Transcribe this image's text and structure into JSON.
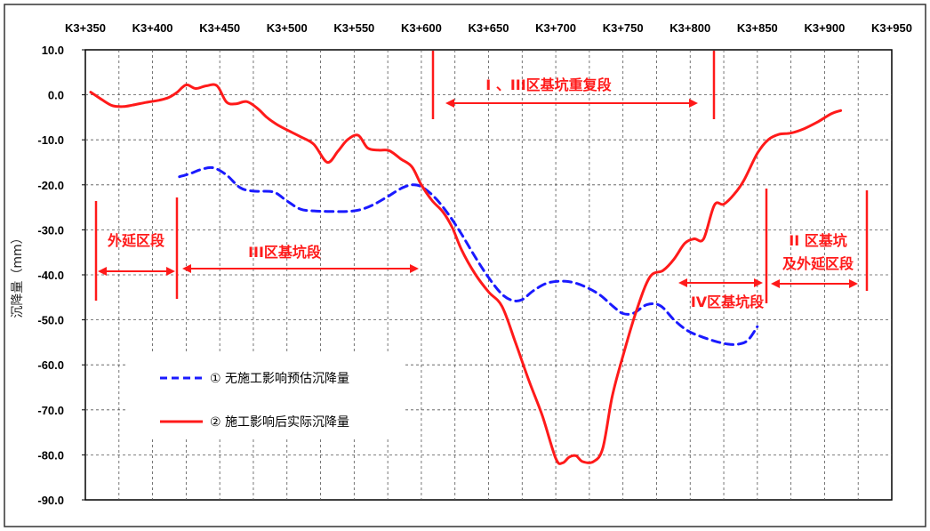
{
  "chart_data": {
    "type": "line",
    "xlabel": "",
    "ylabel": "沉降量（mm）",
    "x_tick_labels": [
      "K3+350",
      "K3+400",
      "K3+450",
      "K3+500",
      "K3+550",
      "K3+600",
      "K3+650",
      "K3+700",
      "K3+750",
      "K3+800",
      "K3+850",
      "K3+900",
      "K3+950"
    ],
    "xlim": [
      3350,
      3950
    ],
    "ylim": [
      -90,
      10
    ],
    "y_tick_labels": [
      "10.0",
      "0.0",
      "-10.0",
      "-20.0",
      "-30.0",
      "-40.0",
      "-50.0",
      "-60.0",
      "-70.0",
      "-80.0",
      "-90.0"
    ],
    "grid": true,
    "series": [
      {
        "name": "① 无施工影响预估沉降量",
        "color": "#1a1aff",
        "style": "dashed",
        "x": [
          3420,
          3428,
          3436,
          3445,
          3455,
          3465,
          3475,
          3490,
          3500,
          3510,
          3520,
          3530,
          3545,
          3555,
          3565,
          3575,
          3585,
          3593,
          3600,
          3610,
          3620,
          3630,
          3640,
          3650,
          3660,
          3668,
          3675,
          3683,
          3693,
          3703,
          3713,
          3723,
          3733,
          3743,
          3750,
          3758,
          3768,
          3778,
          3788,
          3798,
          3808,
          3818,
          3828,
          3836,
          3843,
          3850
        ],
        "values": [
          -18.2,
          -17.5,
          -16.6,
          -16.2,
          -17.8,
          -20.6,
          -21.4,
          -21.6,
          -23.6,
          -25.4,
          -25.8,
          -25.9,
          -25.9,
          -25.5,
          -24.3,
          -22.6,
          -20.8,
          -20.0,
          -20.4,
          -22.8,
          -26.5,
          -31.0,
          -36.0,
          -40.6,
          -44.3,
          -45.7,
          -45.5,
          -43.6,
          -41.9,
          -41.4,
          -41.7,
          -42.8,
          -44.5,
          -47.1,
          -48.6,
          -48.5,
          -46.6,
          -46.9,
          -50.0,
          -52.4,
          -53.7,
          -54.7,
          -55.4,
          -55.4,
          -54.5,
          -51.5
        ]
      },
      {
        "name": "② 施工影响后实际沉降量",
        "color": "#ff1a1a",
        "style": "solid",
        "x": [
          3354,
          3362,
          3370,
          3378,
          3385,
          3395,
          3405,
          3412,
          3418,
          3425,
          3432,
          3440,
          3448,
          3455,
          3462,
          3470,
          3478,
          3485,
          3492,
          3500,
          3510,
          3520,
          3530,
          3538,
          3545,
          3553,
          3560,
          3568,
          3576,
          3585,
          3593,
          3600,
          3608,
          3616,
          3623,
          3630,
          3640,
          3650,
          3660,
          3670,
          3680,
          3690,
          3700,
          3705,
          3710,
          3715,
          3720,
          3728,
          3735,
          3742,
          3750,
          3760,
          3770,
          3780,
          3788,
          3796,
          3803,
          3810,
          3818,
          3825,
          3833,
          3840,
          3850,
          3858,
          3866,
          3875,
          3885,
          3895,
          3905,
          3912
        ],
        "values": [
          0.6,
          -1.0,
          -2.4,
          -2.6,
          -2.3,
          -1.7,
          -1.2,
          -0.6,
          0.5,
          2.2,
          1.4,
          2.0,
          2.0,
          -1.6,
          -2.0,
          -1.5,
          -3.0,
          -5.0,
          -6.5,
          -7.8,
          -9.3,
          -11.0,
          -15.0,
          -12.5,
          -10.0,
          -9.0,
          -11.8,
          -12.3,
          -12.4,
          -14.3,
          -16.0,
          -20.0,
          -23.5,
          -26.0,
          -29.5,
          -34.5,
          -39.8,
          -43.8,
          -47.0,
          -55.0,
          -63.5,
          -71.3,
          -80.8,
          -81.8,
          -80.5,
          -80.2,
          -81.5,
          -81.5,
          -78.5,
          -67.0,
          -58.0,
          -48.0,
          -40.5,
          -39.0,
          -36.5,
          -33.0,
          -32.0,
          -32.0,
          -24.5,
          -24.3,
          -22.0,
          -19.0,
          -13.0,
          -10.0,
          -8.8,
          -8.5,
          -7.5,
          -6.0,
          -4.2,
          -3.5
        ]
      }
    ],
    "annotations": {
      "outer_section": "外延区段",
      "zone3": "III区基坑段",
      "zone13_overlap": "Ⅰ 、III区基坑重复段",
      "zone4": "IV区基坑段",
      "zone2_line1": "II 区基坑",
      "zone2_line2": "及外延区段"
    },
    "legend": {
      "position": "bottom-left",
      "items": [
        "① 无施工影响预估沉降量",
        "② 施工影响后实际沉降量"
      ]
    }
  }
}
